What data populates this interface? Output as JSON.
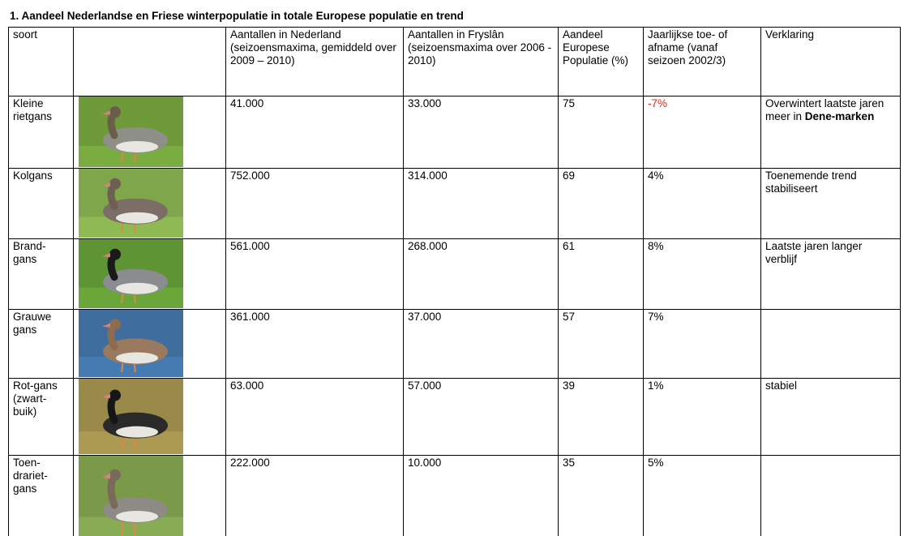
{
  "title": "1.  Aandeel Nederlandse en Friese winterpopulatie in totale Europese populatie en trend",
  "table": {
    "header": [
      "soort",
      "",
      "Aantallen in Nederland (seizoensmaxima, gemiddeld over 2009 – 2010)",
      "Aantallen in Fryslân (seizoensmaxima over 2006 - 2010)",
      "Aandeel Europese Populatie (%)",
      "Jaarlijkse toe- of afname (vanaf seizoen 2002/3)",
      "Verklaring"
    ],
    "rows": [
      {
        "soort": "Kleine rietgans",
        "nl": "41.000",
        "fy": "33.000",
        "aandeel": "75",
        "trend": "-7%",
        "trend_color": "#e8261c",
        "verklaring": "Overwintert laatste jaren meer in",
        "verklaring_bold": "Dene-marken"
      },
      {
        "soort": "Kolgans",
        "nl": "752.000",
        "fy": "314.000",
        "aandeel": "69",
        "trend": "4%",
        "verklaring": "Toenemende trend stabiliseert"
      },
      {
        "soort": "Brand-gans",
        "nl": "561.000",
        "fy": "268.000",
        "aandeel": "61",
        "trend": "8%",
        "verklaring": "Laatste jaren langer verblijf"
      },
      {
        "soort": "Grauwe gans",
        "nl": "361.000",
        "fy": "37.000",
        "aandeel": "57",
        "trend": "7%"
      },
      {
        "soort": "Rot-gans (zwart-buik)",
        "nl": "63.000",
        "fy": "57.000",
        "aandeel": "39",
        "trend": "1%",
        "verklaring": "stabiel"
      },
      {
        "soort": "Toen-drariet-gans",
        "nl": "222.000",
        "fy": "10.000",
        "aandeel": "35",
        "trend": "5%"
      }
    ]
  }
}
